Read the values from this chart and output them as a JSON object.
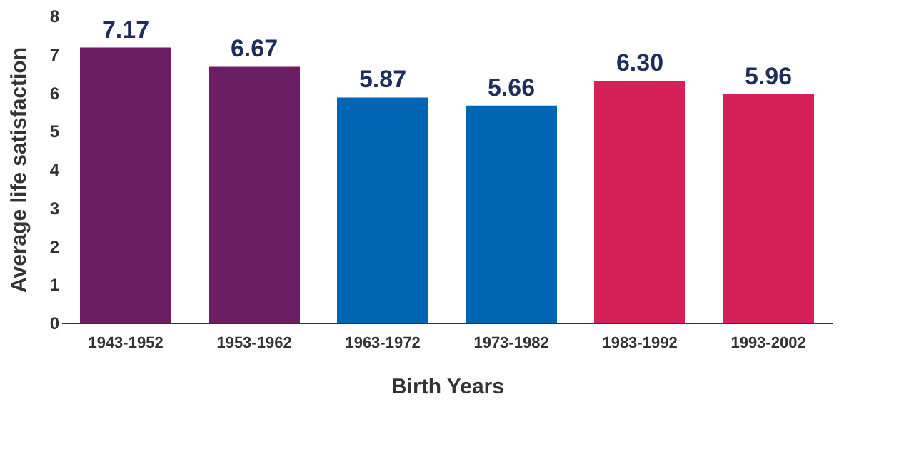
{
  "chart_data": {
    "type": "bar",
    "xlabel": "Birth Years",
    "ylabel": "Average life satisfaction",
    "categories": [
      "1943-1952",
      "1953-1962",
      "1963-1972",
      "1973-1982",
      "1983-1992",
      "1993-2002"
    ],
    "values": [
      7.17,
      6.67,
      5.87,
      5.66,
      6.3,
      5.96
    ],
    "value_labels": [
      "7.17",
      "6.67",
      "5.87",
      "5.66",
      "6.30",
      "5.96"
    ],
    "colors": [
      "#6b1f62",
      "#6b1f62",
      "#0066b3",
      "#0066b3",
      "#d52157",
      "#d52157"
    ],
    "ylim": [
      0,
      8
    ],
    "yticks": [
      0,
      1,
      2,
      3,
      4,
      5,
      6,
      7,
      8
    ],
    "grid": false
  }
}
